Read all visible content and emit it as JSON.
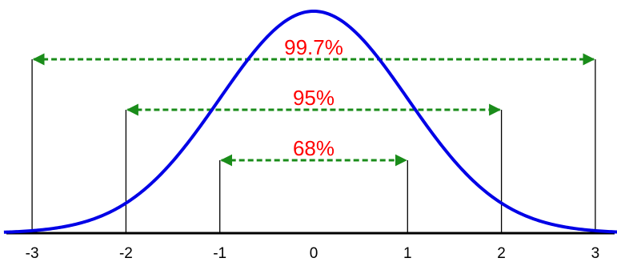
{
  "chart_data": {
    "type": "line",
    "curve": "standard-normal-density",
    "x_ticks": [
      "-3",
      "-2",
      "-1",
      "0",
      "1",
      "2",
      "3"
    ],
    "xlim": [
      -3.3,
      3.3
    ],
    "grid": false,
    "legend": "none",
    "series": [
      {
        "x": [
          -3.3,
          -3,
          -2.5,
          -2,
          -1.5,
          -1,
          -0.5,
          0,
          0.5,
          1,
          1.5,
          2,
          2.5,
          3,
          3.3
        ],
        "y": [
          0.0017,
          0.0044,
          0.0175,
          0.054,
          0.1295,
          0.242,
          0.3521,
          0.3989,
          0.3521,
          0.242,
          0.1295,
          0.054,
          0.0175,
          0.0044,
          0.0017
        ]
      }
    ],
    "bands": [
      {
        "label": "68%",
        "from": -1,
        "to": 1
      },
      {
        "label": "95%",
        "from": -2,
        "to": 2
      },
      {
        "label": "99.7%",
        "from": -3,
        "to": 3
      }
    ],
    "colors": {
      "curve": "#0000e6",
      "bracket": "#1a8c1a",
      "label": "#ff0000",
      "axis": "#000000"
    }
  }
}
